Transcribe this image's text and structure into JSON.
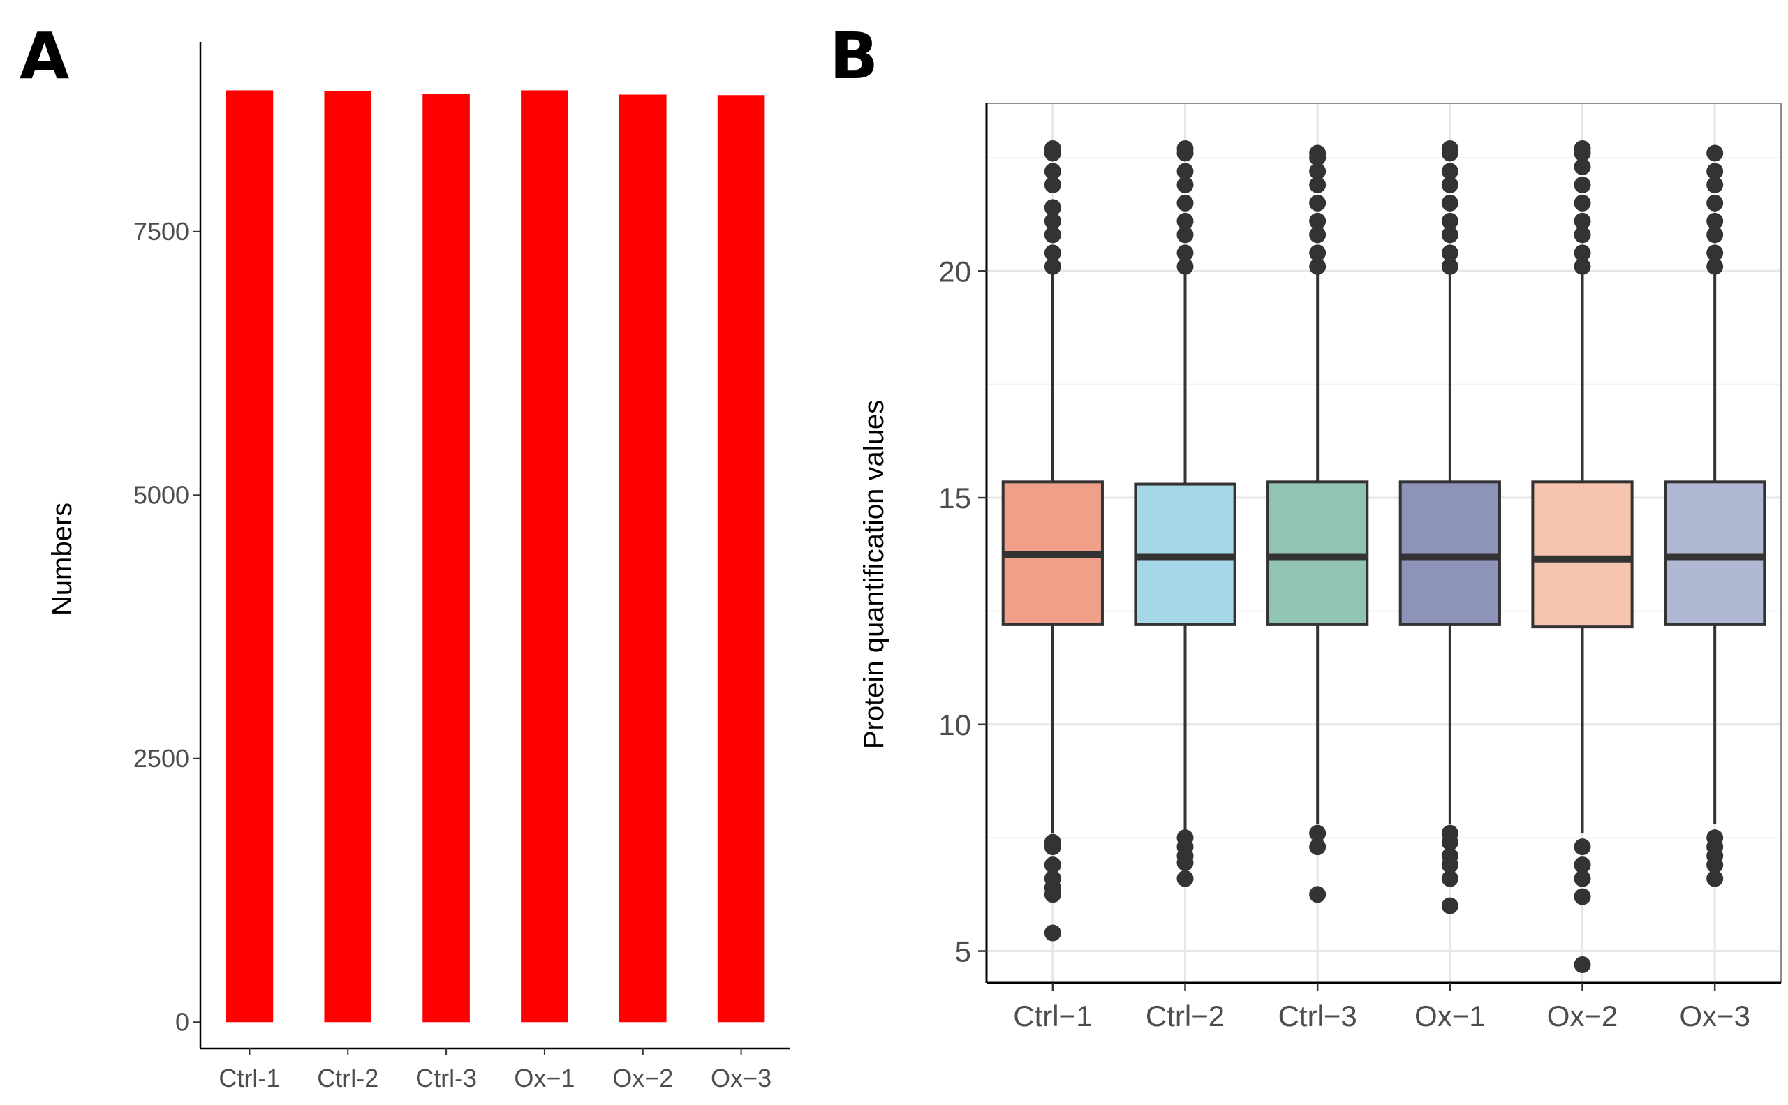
{
  "panels": {
    "a": {
      "letter": "A"
    },
    "b": {
      "letter": "B"
    }
  },
  "chart_data": [
    {
      "type": "bar",
      "panel": "A",
      "categories": [
        "Ctrl-1",
        "Ctrl-2",
        "Ctrl-3",
        "Ox−1",
        "Ox−2",
        "Ox−3"
      ],
      "values": [
        8840,
        8835,
        8810,
        8840,
        8800,
        8795
      ],
      "ylabel": "Numbers",
      "xlabel": "",
      "ylim": [
        -250,
        9300
      ],
      "yticks": [
        0,
        2500,
        5000,
        7500
      ],
      "ytick_labels": [
        "0",
        "2500",
        "5000",
        "7500"
      ],
      "bar_color": "#ff0000",
      "grid": false
    },
    {
      "type": "box",
      "panel": "B",
      "categories": [
        "Ctrl−1",
        "Ctrl−2",
        "Ctrl−3",
        "Ox−1",
        "Ox−2",
        "Ox−3"
      ],
      "ylabel": "Protein quantification values",
      "xlabel": "",
      "ylim": [
        4.3,
        23.7
      ],
      "yticks": [
        5,
        10,
        15,
        20
      ],
      "ytick_labels": [
        "5",
        "10",
        "15",
        "20"
      ],
      "grid": true,
      "series": [
        {
          "name": "Ctrl−1",
          "color": "#f0a089",
          "q1": 12.2,
          "median": 13.75,
          "q3": 15.35,
          "whisker_low": 7.6,
          "whisker_high": 20.0,
          "outliers": [
            7.4,
            7.3,
            6.9,
            6.6,
            6.4,
            6.25,
            5.4,
            20.1,
            20.4,
            20.8,
            21.1,
            21.4,
            21.9,
            22.2,
            22.6,
            22.7
          ]
        },
        {
          "name": "Ctrl−2",
          "color": "#a6d7e8",
          "q1": 12.2,
          "median": 13.7,
          "q3": 15.3,
          "whisker_low": 7.6,
          "whisker_high": 20.0,
          "outliers": [
            7.5,
            7.3,
            7.1,
            6.95,
            6.6,
            20.1,
            20.4,
            20.8,
            21.1,
            21.5,
            21.9,
            22.2,
            22.6,
            22.7
          ]
        },
        {
          "name": "Ctrl−3",
          "color": "#92c4b3",
          "q1": 12.2,
          "median": 13.7,
          "q3": 15.35,
          "whisker_low": 7.8,
          "whisker_high": 20.0,
          "outliers": [
            7.6,
            7.3,
            6.25,
            20.1,
            20.4,
            20.8,
            21.1,
            21.5,
            21.9,
            22.2,
            22.5,
            22.6
          ]
        },
        {
          "name": "Ox−1",
          "color": "#8d93b9",
          "q1": 12.2,
          "median": 13.7,
          "q3": 15.35,
          "whisker_low": 7.8,
          "whisker_high": 20.0,
          "outliers": [
            7.6,
            7.4,
            7.1,
            6.9,
            6.6,
            6.0,
            20.1,
            20.4,
            20.8,
            21.1,
            21.5,
            21.9,
            22.2,
            22.6,
            22.7
          ]
        },
        {
          "name": "Ox−2",
          "color": "#f7c4b0",
          "q1": 12.15,
          "median": 13.65,
          "q3": 15.35,
          "whisker_low": 7.6,
          "whisker_high": 20.0,
          "outliers": [
            7.3,
            6.9,
            6.6,
            6.2,
            4.7,
            20.1,
            20.4,
            20.8,
            21.1,
            21.5,
            21.9,
            22.3,
            22.6,
            22.7
          ]
        },
        {
          "name": "Ox−3",
          "color": "#b1b8d3",
          "q1": 12.2,
          "median": 13.7,
          "q3": 15.35,
          "whisker_low": 7.8,
          "whisker_high": 20.0,
          "outliers": [
            7.5,
            7.3,
            7.1,
            6.9,
            6.6,
            20.1,
            20.4,
            20.8,
            21.1,
            21.5,
            21.9,
            22.2,
            22.6
          ]
        }
      ]
    }
  ]
}
